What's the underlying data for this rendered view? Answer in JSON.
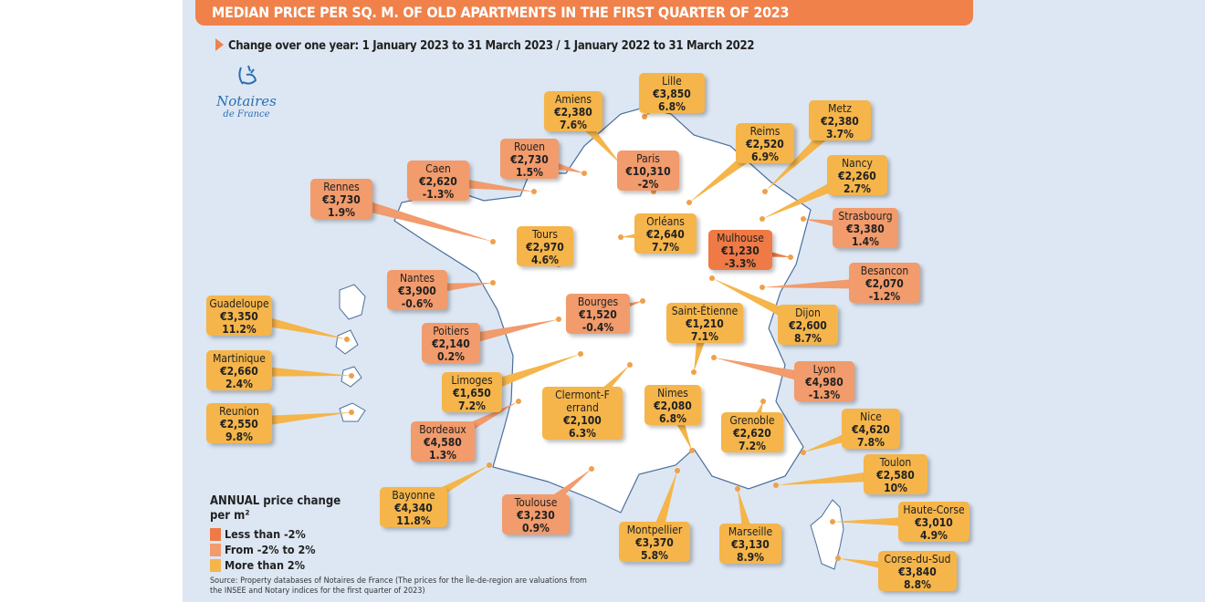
{
  "title": "MEDIAN PRICE PER SQ. M. OF OLD APARTMENTS IN THE FIRST QUARTER OF 2023",
  "subtitle": "Change over one year: 1 January 2023 to 31 March 2023 / 1 January 2022 to 31 March 2022",
  "logo": {
    "name": "Notaires",
    "sub": "de France"
  },
  "colors": {
    "header": "#f0814a",
    "background": "#dde7f3",
    "less_than_minus2": "#ef7a45",
    "minus2_to_2": "#f29b6c",
    "more_than_2": "#f5b54a",
    "land": "#ffffff",
    "border": "#4a6f9c"
  },
  "legend": {
    "title": "ANNUAL price change",
    "title2": "per m²",
    "items": [
      {
        "label": "Less than -2%",
        "category": "low"
      },
      {
        "label": "From -2% to 2%",
        "category": "mid"
      },
      {
        "label": "More than 2%",
        "category": "high"
      }
    ]
  },
  "source": "Source: Property databases of Notaires de France (The prices for the Île-de-region are valuations from the INSEE and Notary indices for the first quarter of 2023)",
  "cities": [
    {
      "name": "Lille",
      "price": "€3,850",
      "change": "6.8%",
      "category": "high"
    },
    {
      "name": "Amiens",
      "price": "€2,380",
      "change": "7.6%",
      "category": "high"
    },
    {
      "name": "Rouen",
      "price": "€2,730",
      "change": "1.5%",
      "category": "mid"
    },
    {
      "name": "Caen",
      "price": "€2,620",
      "change": "-1.3%",
      "category": "mid"
    },
    {
      "name": "Rennes",
      "price": "€3,730",
      "change": "1.9%",
      "category": "mid"
    },
    {
      "name": "Paris",
      "price": "€10,310",
      "change": "-2%",
      "category": "mid"
    },
    {
      "name": "Reims",
      "price": "€2,520",
      "change": "6.9%",
      "category": "high"
    },
    {
      "name": "Metz",
      "price": "€2,380",
      "change": "3.7%",
      "category": "high"
    },
    {
      "name": "Nancy",
      "price": "€2,260",
      "change": "2.7%",
      "category": "high"
    },
    {
      "name": "Strasbourg",
      "price": "€3,380",
      "change": "1.4%",
      "category": "mid"
    },
    {
      "name": "Tours",
      "price": "€2,970",
      "change": "4.6%",
      "category": "high"
    },
    {
      "name": "Orléans",
      "price": "€2,640",
      "change": "7.7%",
      "category": "high"
    },
    {
      "name": "Mulhouse",
      "price": "€1,230",
      "change": "-3.3%",
      "category": "low"
    },
    {
      "name": "Besancon",
      "price": "€2,070",
      "change": "-1.2%",
      "category": "mid"
    },
    {
      "name": "Nantes",
      "price": "€3,900",
      "change": "-0.6%",
      "category": "mid"
    },
    {
      "name": "Bourges",
      "price": "€1,520",
      "change": "-0.4%",
      "category": "mid"
    },
    {
      "name": "Saint-Étienne",
      "price": "€1,210",
      "change": "7.1%",
      "category": "high"
    },
    {
      "name": "Dijon",
      "price": "€2,600",
      "change": "8.7%",
      "category": "high"
    },
    {
      "name": "Poitiers",
      "price": "€2,140",
      "change": "0.2%",
      "category": "mid"
    },
    {
      "name": "Guadeloupe",
      "price": "€3,350",
      "change": "11.2%",
      "category": "high"
    },
    {
      "name": "Martinique",
      "price": "€2,660",
      "change": "2.4%",
      "category": "high"
    },
    {
      "name": "Reunion",
      "price": "€2,550",
      "change": "9.8%",
      "category": "high"
    },
    {
      "name": "Limoges",
      "price": "€1,650",
      "change": "7.2%",
      "category": "high"
    },
    {
      "name": "Clermont-Ferrand",
      "price": "€2,100",
      "change": "6.3%",
      "category": "high"
    },
    {
      "name": "Nimes",
      "price": "€2,080",
      "change": "6.8%",
      "category": "high"
    },
    {
      "name": "Lyon",
      "price": "€4,980",
      "change": "-1.3%",
      "category": "mid"
    },
    {
      "name": "Bordeaux",
      "price": "€4,580",
      "change": "1.3%",
      "category": "mid"
    },
    {
      "name": "Grenoble",
      "price": "€2,620",
      "change": "7.2%",
      "category": "high"
    },
    {
      "name": "Nice",
      "price": "€4,620",
      "change": "7.8%",
      "category": "high"
    },
    {
      "name": "Toulon",
      "price": "€2,580",
      "change": "10%",
      "category": "high"
    },
    {
      "name": "Bayonne",
      "price": "€4,340",
      "change": "11.8%",
      "category": "high"
    },
    {
      "name": "Toulouse",
      "price": "€3,230",
      "change": "0.9%",
      "category": "mid"
    },
    {
      "name": "Montpellier",
      "price": "€3,370",
      "change": "5.8%",
      "category": "high"
    },
    {
      "name": "Marseille",
      "price": "€3,130",
      "change": "8.9%",
      "category": "high"
    },
    {
      "name": "Haute-Corse",
      "price": "€3,010",
      "change": "4.9%",
      "category": "high"
    },
    {
      "name": "Corse-du-Sud",
      "price": "€3,840",
      "change": "8.8%",
      "category": "high"
    }
  ]
}
